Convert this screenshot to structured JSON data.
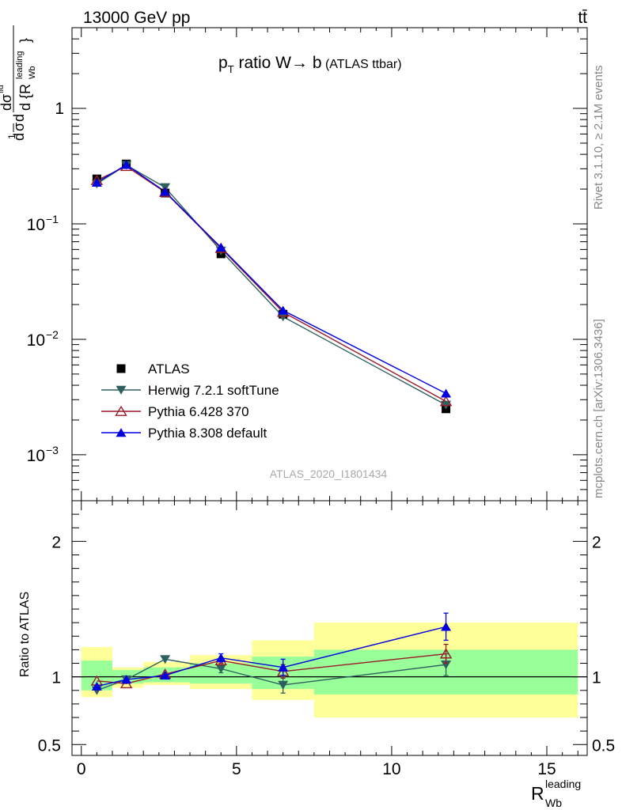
{
  "header": {
    "left": "13000 GeV pp",
    "right": "tt̄"
  },
  "side_labels": {
    "rivet": "Rivet 3.1.10, ≥ 2.1M events",
    "mcplots": "mcplots.cern.ch [arXiv:1306.3436]"
  },
  "colors": {
    "atlas": "#000000",
    "herwig": "#2f6060",
    "pythia6": "#9a1a2a",
    "pythia8": "#0000e0",
    "band_inner": "#99ff99",
    "band_outer": "#ffff99"
  },
  "chart_data": [
    {
      "type": "line",
      "title": "p_T ratio W→b (ATLAS ttbar)",
      "title_parts": {
        "p": "p",
        "sub": "T",
        "rest": " ratio W",
        "arrow": "→",
        "b": " b",
        "small": " (ATLAS ttbar)"
      },
      "watermark": "ATLAS_2020_I1801434",
      "ylabel": "1/σ dσ^fid / d{R_Wb^leading}",
      "yscale": "log",
      "ylim": [
        0.0004,
        5
      ],
      "xlim": [
        -0.3,
        16.3
      ],
      "y_ticks": [
        {
          "value": 0.001,
          "base": "10",
          "exp": "−3"
        },
        {
          "value": 0.01,
          "base": "10",
          "exp": "−2"
        },
        {
          "value": 0.1,
          "base": "10",
          "exp": "−1"
        },
        {
          "value": 1,
          "label": "1"
        }
      ],
      "legend_position": "bottom-left",
      "series": [
        {
          "name": "ATLAS",
          "marker": "square",
          "x": [
            0.5,
            1.45,
            2.7,
            4.5,
            6.5,
            11.75
          ],
          "y": [
            0.245,
            0.33,
            0.185,
            0.055,
            0.0165,
            0.0025
          ]
        },
        {
          "name": "Herwig 7.2.1 softTune",
          "marker": "triangle-down",
          "x": [
            0.5,
            1.45,
            2.7,
            4.5,
            6.5,
            11.75
          ],
          "y": [
            0.222,
            0.323,
            0.207,
            0.0585,
            0.0157,
            0.0027
          ]
        },
        {
          "name": "Pythia 6.428 370",
          "marker": "triangle-up-open",
          "x": [
            0.5,
            1.45,
            2.7,
            4.5,
            6.5,
            11.75
          ],
          "y": [
            0.238,
            0.315,
            0.188,
            0.0615,
            0.0172,
            0.0029
          ]
        },
        {
          "name": "Pythia 8.308 default",
          "marker": "triangle-up",
          "x": [
            0.5,
            1.45,
            2.7,
            4.5,
            6.5,
            11.75
          ],
          "y": [
            0.228,
            0.325,
            0.19,
            0.0625,
            0.0178,
            0.0034
          ]
        }
      ]
    },
    {
      "type": "line",
      "ylabel": "Ratio to ATLAS",
      "xlabel": "R_Wb^leading",
      "xlabel_parts": {
        "main": "R",
        "sub": "Wb",
        "sup": "leading"
      },
      "ylim": [
        0.42,
        2.3
      ],
      "xlim": [
        -0.3,
        16.3
      ],
      "y_ticks": [
        0.5,
        1,
        2
      ],
      "x_ticks": [
        0,
        5,
        10,
        15
      ],
      "reference_line": 1,
      "bands": [
        {
          "x": [
            0,
            1
          ],
          "inner": [
            0.9,
            1.12
          ],
          "outer": [
            0.85,
            1.22
          ]
        },
        {
          "x": [
            1,
            2
          ],
          "inner": [
            0.95,
            1.05
          ],
          "outer": [
            0.92,
            1.07
          ]
        },
        {
          "x": [
            2,
            3.5
          ],
          "inner": [
            0.96,
            1.07
          ],
          "outer": [
            0.94,
            1.11
          ]
        },
        {
          "x": [
            3.5,
            5.5
          ],
          "inner": [
            0.95,
            1.1
          ],
          "outer": [
            0.91,
            1.16
          ]
        },
        {
          "x": [
            5.5,
            7.5
          ],
          "inner": [
            0.91,
            1.15
          ],
          "outer": [
            0.83,
            1.27
          ]
        },
        {
          "x": [
            7.5,
            16
          ],
          "inner": [
            0.87,
            1.2
          ],
          "outer": [
            0.7,
            1.4
          ]
        }
      ],
      "series": [
        {
          "name": "Herwig 7.2.1 softTune",
          "x": [
            0.5,
            1.45,
            2.7,
            4.5,
            6.5,
            11.75
          ],
          "y": [
            0.9,
            0.98,
            1.13,
            1.06,
            0.94,
            1.09
          ],
          "err": [
            0.01,
            0.01,
            0.01,
            0.03,
            0.06,
            0.08
          ]
        },
        {
          "name": "Pythia 6.428 370",
          "x": [
            0.5,
            1.45,
            2.7,
            4.5,
            6.5,
            11.75
          ],
          "y": [
            0.97,
            0.95,
            1.02,
            1.12,
            1.04,
            1.17
          ],
          "err": [
            0.01,
            0.01,
            0.01,
            0.02,
            0.05,
            0.07
          ]
        },
        {
          "name": "Pythia 8.308 default",
          "x": [
            0.5,
            1.45,
            2.7,
            4.5,
            6.5,
            11.75
          ],
          "y": [
            0.93,
            0.98,
            1.01,
            1.14,
            1.07,
            1.37
          ],
          "err": [
            0.01,
            0.01,
            0.01,
            0.03,
            0.06,
            0.1
          ]
        }
      ]
    }
  ]
}
